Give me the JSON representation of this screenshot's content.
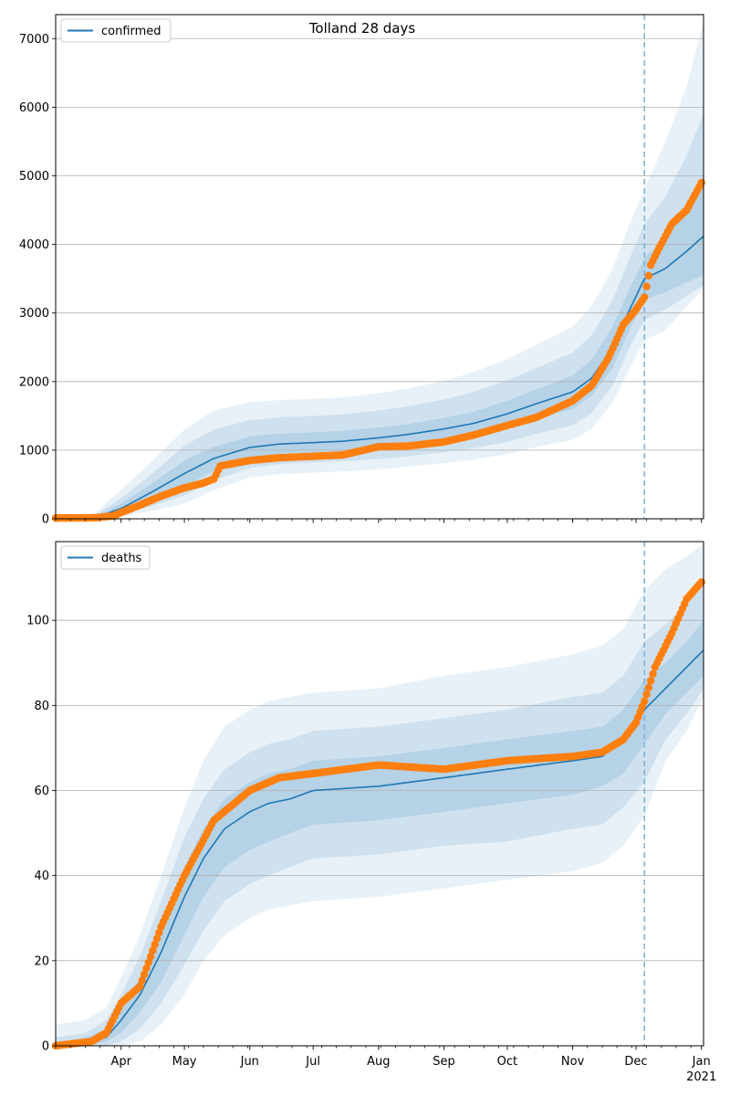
{
  "chart_data": [
    {
      "type": "line",
      "title": "Tolland 28 days",
      "ylim": [
        0,
        7350
      ],
      "yticks": [
        0,
        1000,
        2000,
        3000,
        4000,
        5000,
        6000,
        7000
      ],
      "grid": "horizontal",
      "legend": {
        "placement": "top-left",
        "label": "confirmed"
      },
      "forecast_start": "2020-12-05",
      "model": {
        "x": [
          "2020-03-01",
          "2020-03-20",
          "2020-04-01",
          "2020-04-15",
          "2020-05-01",
          "2020-05-15",
          "2020-06-01",
          "2020-06-15",
          "2020-07-01",
          "2020-07-15",
          "2020-08-01",
          "2020-08-15",
          "2020-09-01",
          "2020-09-15",
          "2020-10-01",
          "2020-10-15",
          "2020-11-01",
          "2020-11-10",
          "2020-11-20",
          "2020-11-28",
          "2020-12-05",
          "2020-12-15",
          "2020-12-25",
          "2021-01-02"
        ],
        "median": [
          0,
          20,
          150,
          380,
          660,
          880,
          1040,
          1090,
          1110,
          1130,
          1180,
          1230,
          1310,
          1390,
          1530,
          1680,
          1850,
          2050,
          2500,
          3050,
          3500,
          3650,
          3900,
          4120
        ],
        "band_inner": [
          [
            0,
            0
          ],
          [
            5,
            40
          ],
          [
            90,
            220
          ],
          [
            260,
            500
          ],
          [
            470,
            850
          ],
          [
            700,
            1050
          ],
          [
            880,
            1200
          ],
          [
            950,
            1240
          ],
          [
            970,
            1260
          ],
          [
            990,
            1280
          ],
          [
            1030,
            1330
          ],
          [
            1080,
            1380
          ],
          [
            1150,
            1470
          ],
          [
            1220,
            1560
          ],
          [
            1330,
            1720
          ],
          [
            1460,
            1890
          ],
          [
            1600,
            2090
          ],
          [
            1790,
            2320
          ],
          [
            2200,
            2810
          ],
          [
            2760,
            3360
          ],
          [
            3200,
            3800
          ],
          [
            3300,
            4100
          ],
          [
            3450,
            4500
          ],
          [
            3550,
            4950
          ]
        ],
        "band_mid": [
          [
            0,
            0
          ],
          [
            2,
            60
          ],
          [
            60,
            300
          ],
          [
            180,
            640
          ],
          [
            340,
            1070
          ],
          [
            560,
            1300
          ],
          [
            740,
            1440
          ],
          [
            800,
            1480
          ],
          [
            820,
            1500
          ],
          [
            840,
            1520
          ],
          [
            870,
            1580
          ],
          [
            910,
            1640
          ],
          [
            970,
            1740
          ],
          [
            1030,
            1850
          ],
          [
            1120,
            2020
          ],
          [
            1240,
            2200
          ],
          [
            1360,
            2420
          ],
          [
            1540,
            2680
          ],
          [
            1950,
            3200
          ],
          [
            2500,
            3800
          ],
          [
            2900,
            4300
          ],
          [
            3050,
            4700
          ],
          [
            3250,
            5300
          ],
          [
            3400,
            5900
          ]
        ],
        "band_outer": [
          [
            0,
            0
          ],
          [
            0,
            90
          ],
          [
            30,
            420
          ],
          [
            110,
            820
          ],
          [
            220,
            1300
          ],
          [
            420,
            1580
          ],
          [
            600,
            1700
          ],
          [
            650,
            1730
          ],
          [
            670,
            1750
          ],
          [
            690,
            1770
          ],
          [
            720,
            1830
          ],
          [
            760,
            1900
          ],
          [
            810,
            2010
          ],
          [
            860,
            2140
          ],
          [
            940,
            2330
          ],
          [
            1050,
            2540
          ],
          [
            1150,
            2800
          ],
          [
            1310,
            3100
          ],
          [
            1700,
            3650
          ],
          [
            2200,
            4300
          ],
          [
            2600,
            4800
          ],
          [
            2750,
            5500
          ],
          [
            3100,
            6300
          ],
          [
            3350,
            7250
          ]
        ]
      },
      "observed": {
        "x": [
          "2020-03-01",
          "2020-03-20",
          "2020-03-28",
          "2020-04-01",
          "2020-04-10",
          "2020-04-20",
          "2020-05-01",
          "2020-05-10",
          "2020-05-15",
          "2020-05-18",
          "2020-06-01",
          "2020-06-15",
          "2020-07-01",
          "2020-07-15",
          "2020-08-01",
          "2020-08-15",
          "2020-09-01",
          "2020-09-15",
          "2020-10-01",
          "2020-10-15",
          "2020-11-01",
          "2020-11-10",
          "2020-11-18",
          "2020-11-25",
          "2020-12-01",
          "2020-12-05",
          "2020-12-08",
          "2020-12-12",
          "2020-12-18",
          "2020-12-25",
          "2021-01-01"
        ],
        "y": [
          10,
          15,
          40,
          90,
          200,
          330,
          450,
          520,
          580,
          770,
          850,
          890,
          910,
          930,
          1050,
          1060,
          1120,
          1220,
          1360,
          1480,
          1720,
          1940,
          2350,
          2830,
          3050,
          3230,
          3700,
          3950,
          4300,
          4500,
          4900
        ]
      }
    },
    {
      "type": "line",
      "title": "",
      "ylim": [
        0,
        118.5
      ],
      "yticks": [
        0,
        20,
        40,
        60,
        80,
        100
      ],
      "grid": "horizontal",
      "legend": {
        "placement": "top-left",
        "label": "deaths"
      },
      "forecast_start": "2020-12-05",
      "model": {
        "x": [
          "2020-03-01",
          "2020-03-15",
          "2020-03-25",
          "2020-04-01",
          "2020-04-10",
          "2020-04-20",
          "2020-05-01",
          "2020-05-10",
          "2020-05-20",
          "2020-06-01",
          "2020-06-10",
          "2020-06-20",
          "2020-07-01",
          "2020-08-01",
          "2020-09-01",
          "2020-10-01",
          "2020-11-01",
          "2020-11-15",
          "2020-11-25",
          "2020-12-05",
          "2020-12-15",
          "2020-12-25",
          "2021-01-02"
        ],
        "median": [
          0,
          1,
          2,
          6,
          12,
          22,
          35,
          44,
          51,
          55,
          57,
          58,
          60,
          61,
          63,
          65,
          67,
          68,
          72,
          79,
          84,
          89,
          93
        ],
        "band_inner": [
          [
            0,
            0.5
          ],
          [
            0,
            2
          ],
          [
            1,
            4
          ],
          [
            3,
            9
          ],
          [
            8,
            16
          ],
          [
            15,
            28
          ],
          [
            26,
            42
          ],
          [
            35,
            51
          ],
          [
            42,
            58
          ],
          [
            46,
            62
          ],
          [
            48,
            64
          ],
          [
            50,
            65
          ],
          [
            52,
            67
          ],
          [
            53,
            68
          ],
          [
            55,
            70
          ],
          [
            57,
            72
          ],
          [
            59,
            74
          ],
          [
            61,
            75
          ],
          [
            64,
            79
          ],
          [
            71,
            86
          ],
          [
            78,
            90
          ],
          [
            83,
            95
          ],
          [
            87,
            100
          ]
        ],
        "band_mid": [
          [
            0,
            2
          ],
          [
            0,
            3
          ],
          [
            0,
            6
          ],
          [
            1,
            12
          ],
          [
            4,
            21
          ],
          [
            10,
            34
          ],
          [
            19,
            49
          ],
          [
            27,
            58
          ],
          [
            34,
            65
          ],
          [
            38,
            69
          ],
          [
            40,
            71
          ],
          [
            42,
            72
          ],
          [
            44,
            74
          ],
          [
            45,
            75
          ],
          [
            47,
            77
          ],
          [
            48,
            79
          ],
          [
            51,
            82
          ],
          [
            52,
            83
          ],
          [
            56,
            87
          ],
          [
            62,
            95
          ],
          [
            72,
            99
          ],
          [
            78,
            104
          ],
          [
            84,
            110
          ]
        ],
        "band_outer": [
          [
            0,
            5
          ],
          [
            0,
            6
          ],
          [
            0,
            9
          ],
          [
            0,
            16
          ],
          [
            1,
            26
          ],
          [
            5,
            40
          ],
          [
            12,
            56
          ],
          [
            20,
            67
          ],
          [
            26,
            75
          ],
          [
            30,
            79
          ],
          [
            32,
            81
          ],
          [
            33,
            82
          ],
          [
            34,
            83
          ],
          [
            35,
            84
          ],
          [
            37,
            87
          ],
          [
            39,
            89
          ],
          [
            41,
            92
          ],
          [
            43,
            94
          ],
          [
            47,
            98
          ],
          [
            54,
            107
          ],
          [
            67,
            112
          ],
          [
            74,
            115
          ],
          [
            82,
            118
          ]
        ]
      },
      "observed": {
        "x": [
          "2020-03-01",
          "2020-03-18",
          "2020-03-25",
          "2020-04-01",
          "2020-04-10",
          "2020-04-20",
          "2020-05-01",
          "2020-05-15",
          "2020-06-01",
          "2020-06-15",
          "2020-07-01",
          "2020-08-01",
          "2020-09-01",
          "2020-10-01",
          "2020-11-01",
          "2020-11-15",
          "2020-11-25",
          "2020-12-01",
          "2020-12-05",
          "2020-12-10",
          "2020-12-18",
          "2020-12-25",
          "2021-01-01"
        ],
        "y": [
          0,
          1,
          3,
          10,
          14,
          28,
          40,
          53,
          60,
          63,
          64,
          66,
          65,
          67,
          68,
          69,
          72,
          76,
          81,
          89,
          97,
          105,
          109
        ]
      }
    }
  ],
  "x_axis": {
    "range": [
      "2020-03-01",
      "2021-01-02"
    ],
    "month_labels": [
      {
        "date": "2020-04-01",
        "label": "Apr"
      },
      {
        "date": "2020-05-01",
        "label": "May"
      },
      {
        "date": "2020-06-01",
        "label": "Jun"
      },
      {
        "date": "2020-07-01",
        "label": "Jul"
      },
      {
        "date": "2020-08-01",
        "label": "Aug"
      },
      {
        "date": "2020-09-01",
        "label": "Sep"
      },
      {
        "date": "2020-10-01",
        "label": "Oct"
      },
      {
        "date": "2020-11-01",
        "label": "Nov"
      },
      {
        "date": "2020-12-01",
        "label": "Dec"
      },
      {
        "date": "2021-01-01",
        "label": "Jan"
      }
    ],
    "year_label": "2021"
  },
  "colors": {
    "model_line": "#1f77b4",
    "observed": "#ff7f0e",
    "band": "#1f77b4",
    "grid": "#b0b0b0",
    "forecast_line": "#7fb3d8"
  }
}
